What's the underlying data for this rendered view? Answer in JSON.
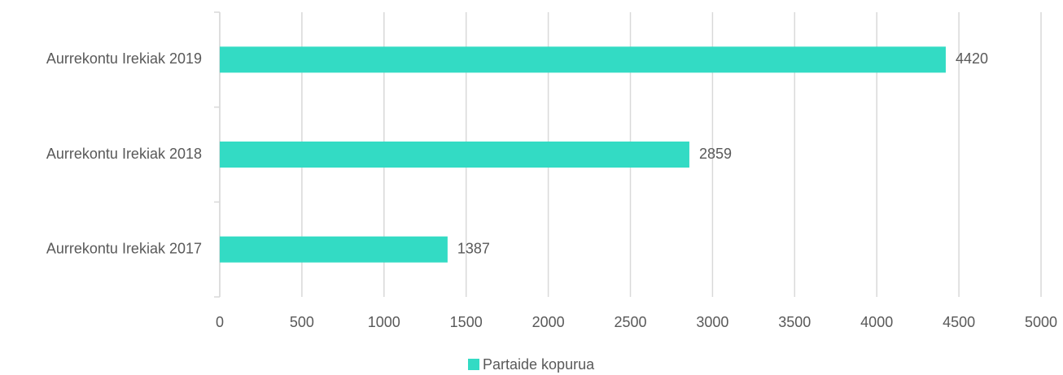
{
  "chart_data": {
    "type": "barh",
    "categories": [
      "Aurrekontu Irekiak 2019",
      "Aurrekontu Irekiak 2018",
      "Aurrekontu Irekiak 2017"
    ],
    "series": [
      {
        "name": "Partaide kopurua",
        "color": "#33dbc4",
        "values": [
          4420,
          2859,
          1387
        ]
      }
    ],
    "xlim": [
      0,
      5000
    ],
    "xticks": [
      0,
      500,
      1000,
      1500,
      2000,
      2500,
      3000,
      3500,
      4000,
      4500,
      5000
    ],
    "grid": true,
    "legend": "bottom"
  }
}
